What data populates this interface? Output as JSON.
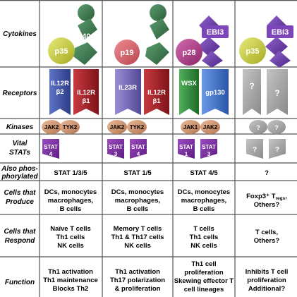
{
  "rows": {
    "cytokines": [
      "Cytokines"
    ],
    "receptors": [
      "Receptors"
    ],
    "kinases": [
      "Kinases"
    ],
    "vital_stats": [
      "Vital",
      "STATs"
    ],
    "also_phos": [
      "Also phos-",
      "phorylated"
    ],
    "cells_produce": [
      "Cells that",
      "Produce"
    ],
    "cells_respond": [
      "Cells that",
      "Respond"
    ],
    "function": [
      "Function"
    ]
  },
  "columns": [
    {
      "cytokine": [
        "p35",
        "p40"
      ],
      "receptor": [
        "IL12R\nβ2",
        "IL12R\nβ1"
      ],
      "kinases": [
        "JAK2",
        "TYK2"
      ],
      "stats": [
        "STAT\n4"
      ],
      "also": "STAT 1/3/5",
      "produce": [
        "DCs, monocytes",
        "macrophages,",
        "B cells"
      ],
      "respond": [
        "Naïve T cells",
        "Th1 cells",
        "NK cells"
      ],
      "function": [
        "Th1 activation",
        "Th1 maintenance",
        "Blocks Th2"
      ]
    },
    {
      "cytokine": [
        "p19",
        "p40"
      ],
      "receptor": [
        "IL23R",
        "IL12R\nβ1"
      ],
      "kinases": [
        "JAK2",
        "TYK2"
      ],
      "stats": [
        "STAT\n3",
        "STAT\n4"
      ],
      "also": "STAT 1/5",
      "produce": [
        "DCs, monocytes",
        "macrophages,",
        "B cells"
      ],
      "respond": [
        "Memory T cells",
        "Th1 & Th17 cells",
        "NK cells"
      ],
      "function": [
        "Th1 activation",
        "Th17 polarization",
        "& proliferation"
      ]
    },
    {
      "cytokine": [
        "p28",
        "EBI3"
      ],
      "receptor": [
        "WSX",
        "gp130"
      ],
      "kinases": [
        "JAK1",
        "JAK2"
      ],
      "stats": [
        "STAT\n1",
        "STAT\n3"
      ],
      "also": "STAT 4/5",
      "produce": [
        "DCs, monocytes",
        "macrophages,",
        "B cells"
      ],
      "respond": [
        "T cells",
        "Th1 cells",
        "NK cells"
      ],
      "function": [
        "Th1 cell",
        "proliferation",
        "Skewing effector T",
        "cell lineages"
      ]
    },
    {
      "cytokine": [
        "p35",
        "EBI3"
      ],
      "receptor": [
        "?",
        "?"
      ],
      "kinases": [
        "?",
        "?"
      ],
      "stats": [
        "?",
        "?"
      ],
      "also": "?",
      "produce": [
        "Foxp3⁺ T",
        "regs",
        ",",
        "Others?"
      ],
      "respond": [
        "T cells,",
        "Others?"
      ],
      "function": [
        "Inhibits T cell",
        "proliferation",
        "Additional?"
      ]
    }
  ],
  "colors": {
    "grid": "#555555",
    "p35": "#c9cf3a",
    "p40": "#3e7a52",
    "p19": "#d96570",
    "p28": "#b03a8a",
    "ebi3": "#6a3aa8",
    "il12rb2": "#3d52a8",
    "il12rb1": "#a8242a",
    "il23r": "#7264b5",
    "wsx": "#2f8f3a",
    "gp130": "#3a6dc8",
    "jak": "#d69a72",
    "stat": "#7a2c9e",
    "unknown": "#a8a8a8"
  }
}
